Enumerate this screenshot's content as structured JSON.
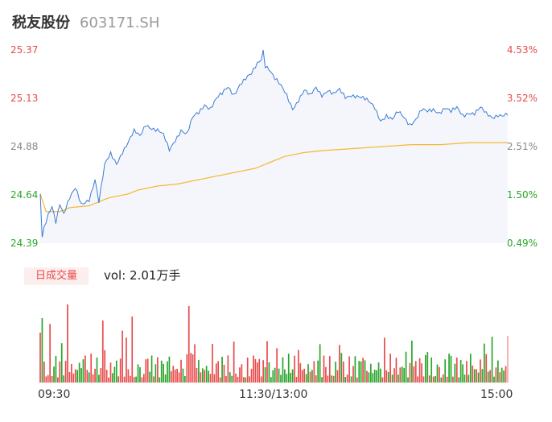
{
  "header": {
    "name": "税友股份",
    "code": "603171.SH"
  },
  "colors": {
    "up": "#e84b4b",
    "down": "#2aa52a",
    "flat": "#888888",
    "price_line": "#3a7bd5",
    "avg_line": "#f5b62a"
  },
  "volume": {
    "tag": "日成交量",
    "text": "vol: 2.01万手"
  },
  "chart_data": {
    "type": "line",
    "title": "",
    "xlabel": "",
    "ylabel": "",
    "x_ticks": [
      "09:30",
      "11:30/13:00",
      "15:00"
    ],
    "y_left_ticks": [
      "25.37",
      "25.13",
      "24.88",
      "24.64",
      "24.39"
    ],
    "y_right_ticks": [
      "4.53%",
      "3.52%",
      "2.51%",
      "1.50%",
      "0.49%"
    ],
    "ylim": [
      24.39,
      25.37
    ],
    "minutes": 240,
    "price_keys": [
      [
        0,
        24.64
      ],
      [
        1,
        24.42
      ],
      [
        2,
        24.46
      ],
      [
        4,
        24.52
      ],
      [
        6,
        24.57
      ],
      [
        8,
        24.5
      ],
      [
        10,
        24.6
      ],
      [
        12,
        24.55
      ],
      [
        15,
        24.62
      ],
      [
        18,
        24.66
      ],
      [
        21,
        24.58
      ],
      [
        25,
        24.62
      ],
      [
        28,
        24.72
      ],
      [
        30,
        24.6
      ],
      [
        33,
        24.78
      ],
      [
        36,
        24.84
      ],
      [
        39,
        24.8
      ],
      [
        42,
        24.86
      ],
      [
        45,
        24.9
      ],
      [
        48,
        24.95
      ],
      [
        51,
        24.93
      ],
      [
        54,
        25.0
      ],
      [
        57,
        24.98
      ],
      [
        60,
        24.96
      ],
      [
        63,
        24.93
      ],
      [
        66,
        24.86
      ],
      [
        69,
        24.92
      ],
      [
        72,
        24.97
      ],
      [
        75,
        24.94
      ],
      [
        78,
        25.02
      ],
      [
        81,
        25.05
      ],
      [
        84,
        25.1
      ],
      [
        87,
        25.08
      ],
      [
        90,
        25.12
      ],
      [
        93,
        25.14
      ],
      [
        96,
        25.18
      ],
      [
        99,
        25.15
      ],
      [
        102,
        25.2
      ],
      [
        105,
        25.22
      ],
      [
        108,
        25.24
      ],
      [
        111,
        25.3
      ],
      [
        113,
        25.33
      ],
      [
        114,
        25.37
      ],
      [
        115,
        25.3
      ],
      [
        117,
        25.28
      ],
      [
        120,
        25.22
      ],
      [
        123,
        25.18
      ],
      [
        126,
        25.14
      ],
      [
        129,
        25.08
      ],
      [
        132,
        25.12
      ],
      [
        135,
        25.16
      ],
      [
        138,
        25.13
      ],
      [
        141,
        25.18
      ],
      [
        144,
        25.15
      ],
      [
        147,
        25.17
      ],
      [
        150,
        25.14
      ],
      [
        153,
        25.16
      ],
      [
        156,
        25.13
      ],
      [
        159,
        25.15
      ],
      [
        162,
        25.14
      ],
      [
        165,
        25.12
      ],
      [
        168,
        25.1
      ],
      [
        171,
        25.08
      ],
      [
        174,
        25.02
      ],
      [
        177,
        25.04
      ],
      [
        180,
        25.01
      ],
      [
        183,
        25.05
      ],
      [
        186,
        25.03
      ],
      [
        189,
        25.0
      ],
      [
        192,
        25.02
      ],
      [
        195,
        25.06
      ],
      [
        198,
        25.05
      ],
      [
        201,
        25.07
      ],
      [
        204,
        25.06
      ],
      [
        207,
        25.08
      ],
      [
        210,
        25.05
      ],
      [
        213,
        25.07
      ],
      [
        216,
        25.04
      ],
      [
        219,
        25.06
      ],
      [
        222,
        25.05
      ],
      [
        225,
        25.07
      ],
      [
        228,
        25.04
      ],
      [
        231,
        25.03
      ],
      [
        234,
        25.05
      ],
      [
        237,
        25.04
      ],
      [
        239,
        25.04
      ]
    ],
    "avg_keys": [
      [
        0,
        24.64
      ],
      [
        3,
        24.55
      ],
      [
        10,
        24.55
      ],
      [
        15,
        24.57
      ],
      [
        25,
        24.58
      ],
      [
        30,
        24.6
      ],
      [
        35,
        24.62
      ],
      [
        45,
        24.64
      ],
      [
        50,
        24.66
      ],
      [
        60,
        24.68
      ],
      [
        70,
        24.69
      ],
      [
        80,
        24.71
      ],
      [
        90,
        24.73
      ],
      [
        100,
        24.75
      ],
      [
        110,
        24.77
      ],
      [
        115,
        24.79
      ],
      [
        120,
        24.81
      ],
      [
        125,
        24.83
      ],
      [
        130,
        24.84
      ],
      [
        135,
        24.85
      ],
      [
        145,
        24.86
      ],
      [
        160,
        24.87
      ],
      [
        175,
        24.88
      ],
      [
        190,
        24.89
      ],
      [
        205,
        24.89
      ],
      [
        220,
        24.9
      ],
      [
        239,
        24.9
      ]
    ]
  }
}
